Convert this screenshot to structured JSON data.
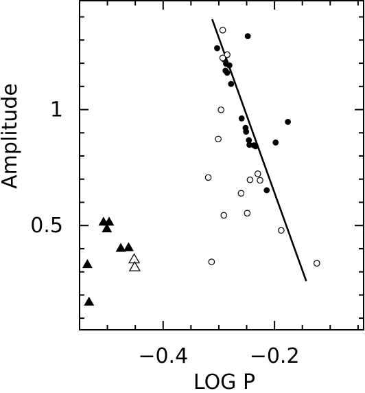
{
  "chart_data": {
    "type": "scatter",
    "xlabel": "LOG P",
    "ylabel": "Amplitude",
    "xlim": [
      -0.55,
      -0.04
    ],
    "ylim": [
      0.05,
      1.47
    ],
    "x_ticks": [
      {
        "value": -0.4,
        "label": "−0.4"
      },
      {
        "value": -0.2,
        "label": "−0.2"
      }
    ],
    "y_ticks": [
      {
        "value": 0.5,
        "label": "0.5"
      },
      {
        "value": 1.0,
        "label": "1"
      }
    ],
    "grid": false,
    "series": [
      {
        "marker": "filled-circle",
        "points": [
          [
            -0.303,
            1.265
          ],
          [
            -0.248,
            1.317
          ],
          [
            -0.291,
            1.217
          ],
          [
            -0.287,
            1.198
          ],
          [
            -0.281,
            1.191
          ],
          [
            -0.288,
            1.168
          ],
          [
            -0.285,
            1.159
          ],
          [
            -0.278,
            1.111
          ],
          [
            -0.259,
            0.962
          ],
          [
            -0.252,
            0.921
          ],
          [
            -0.251,
            0.905
          ],
          [
            -0.176,
            0.947
          ],
          [
            -0.246,
            0.868
          ],
          [
            -0.245,
            0.848
          ],
          [
            -0.237,
            0.846
          ],
          [
            -0.234,
            0.842
          ],
          [
            -0.198,
            0.858
          ],
          [
            -0.214,
            0.652
          ]
        ]
      },
      {
        "marker": "open-circle",
        "points": [
          [
            -0.293,
            1.343
          ],
          [
            -0.285,
            1.237
          ],
          [
            -0.293,
            1.223
          ],
          [
            -0.296,
            0.999
          ],
          [
            -0.301,
            0.873
          ],
          [
            -0.319,
            0.707
          ],
          [
            -0.244,
            0.697
          ],
          [
            -0.23,
            0.723
          ],
          [
            -0.226,
            0.695
          ],
          [
            -0.26,
            0.639
          ],
          [
            -0.291,
            0.544
          ],
          [
            -0.249,
            0.553
          ],
          [
            -0.188,
            0.479
          ],
          [
            -0.313,
            0.343
          ],
          [
            -0.124,
            0.337
          ]
        ]
      },
      {
        "marker": "filled-triangle",
        "points": [
          [
            -0.507,
            0.515
          ],
          [
            -0.497,
            0.515
          ],
          [
            -0.501,
            0.486
          ],
          [
            -0.476,
            0.402
          ],
          [
            -0.462,
            0.405
          ],
          [
            -0.536,
            0.332
          ],
          [
            -0.533,
            0.17
          ]
        ]
      },
      {
        "marker": "open-triangle",
        "points": [
          [
            -0.452,
            0.354
          ],
          [
            -0.451,
            0.32
          ]
        ]
      }
    ],
    "fit_line": {
      "x": [
        -0.312,
        -0.143
      ],
      "y": [
        1.39,
        0.26
      ]
    }
  }
}
